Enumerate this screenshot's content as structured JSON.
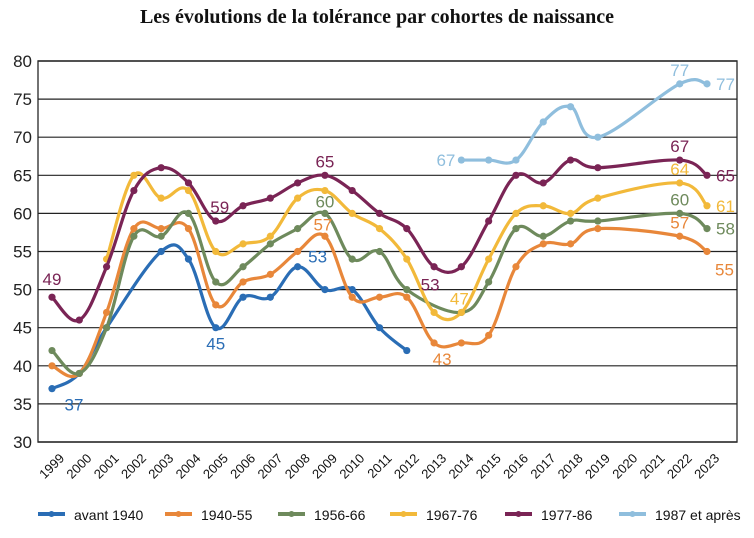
{
  "chart_data": {
    "type": "line",
    "title": "Les évolutions de la tolérance par cohortes de naissance",
    "xlabel": "",
    "ylabel": "",
    "ylim": [
      30,
      80
    ],
    "yticks": [
      30,
      35,
      40,
      45,
      50,
      55,
      60,
      65,
      70,
      75,
      80
    ],
    "grid": true,
    "legend_position": "bottom",
    "x": [
      "1999",
      "2000",
      "2001",
      "2002",
      "2003",
      "2004",
      "2005",
      "2006",
      "2007",
      "2008",
      "2009",
      "2010",
      "2011",
      "2012",
      "2013",
      "2014",
      "2015",
      "2016",
      "2017",
      "2018",
      "2019",
      "2020",
      "2021",
      "2022",
      "2023"
    ],
    "series": [
      {
        "name": "avant 1940",
        "color": "#2a6db5",
        "values": [
          37,
          39,
          45,
          null,
          55,
          54,
          45,
          49,
          49,
          53,
          50,
          50,
          45,
          42,
          null,
          null,
          null,
          null,
          null,
          null,
          null,
          null,
          null,
          null,
          null
        ],
        "labels": [
          {
            "x": "1999",
            "text": "37"
          },
          {
            "x": "2005",
            "text": "45"
          },
          {
            "x": "2008",
            "text": "53"
          }
        ]
      },
      {
        "name": "1940-55",
        "color": "#e8873a",
        "values": [
          40,
          39,
          47,
          58,
          58,
          58,
          48,
          51,
          52,
          55,
          57,
          49,
          49,
          49,
          43,
          43,
          44,
          53,
          56,
          56,
          58,
          null,
          null,
          57,
          55
        ],
        "labels": [
          {
            "x": "2009",
            "text": "57"
          },
          {
            "x": "2013",
            "text": "43"
          },
          {
            "x": "2022",
            "text": "57"
          },
          {
            "x": "2023",
            "text": "55"
          }
        ]
      },
      {
        "name": "1956-66",
        "color": "#6e8a5c",
        "values": [
          42,
          39,
          45,
          57,
          57,
          60,
          51,
          53,
          56,
          58,
          60,
          54,
          55,
          50,
          null,
          47,
          51,
          58,
          57,
          59,
          59,
          null,
          null,
          60,
          58
        ],
        "labels": [
          {
            "x": "2009",
            "text": "60"
          },
          {
            "x": "2022",
            "text": "60"
          },
          {
            "x": "2023",
            "text": "58"
          }
        ]
      },
      {
        "name": "1967-76",
        "color": "#f2b93a",
        "values": [
          null,
          null,
          54,
          65,
          62,
          63,
          55,
          56,
          57,
          62,
          63,
          60,
          58,
          54,
          47,
          47,
          54,
          60,
          61,
          60,
          62,
          null,
          null,
          64,
          61
        ],
        "labels": [
          {
            "x": "2014",
            "text": "47"
          },
          {
            "x": "2022",
            "text": "64"
          },
          {
            "x": "2023",
            "text": "61"
          }
        ]
      },
      {
        "name": "1977-86",
        "color": "#7a2455",
        "values": [
          49,
          46,
          53,
          63,
          66,
          64,
          59,
          61,
          62,
          64,
          65,
          63,
          60,
          58,
          53,
          53,
          59,
          65,
          64,
          67,
          66,
          null,
          null,
          67,
          65
        ],
        "labels": [
          {
            "x": "1999",
            "text": "49"
          },
          {
            "x": "2005",
            "text": "59"
          },
          {
            "x": "2009",
            "text": "65"
          },
          {
            "x": "2013",
            "text": "53"
          },
          {
            "x": "2022",
            "text": "67"
          },
          {
            "x": "2023",
            "text": "65"
          }
        ]
      },
      {
        "name": "1987 et après",
        "color": "#8fbedd",
        "values": [
          null,
          null,
          null,
          null,
          null,
          null,
          null,
          null,
          null,
          null,
          null,
          null,
          null,
          null,
          null,
          67,
          67,
          67,
          72,
          74,
          70,
          null,
          null,
          77,
          77
        ],
        "labels": [
          {
            "x": "2014",
            "text": "67"
          },
          {
            "x": "2022",
            "text": "77"
          },
          {
            "x": "2023",
            "text": "77"
          }
        ]
      }
    ]
  }
}
